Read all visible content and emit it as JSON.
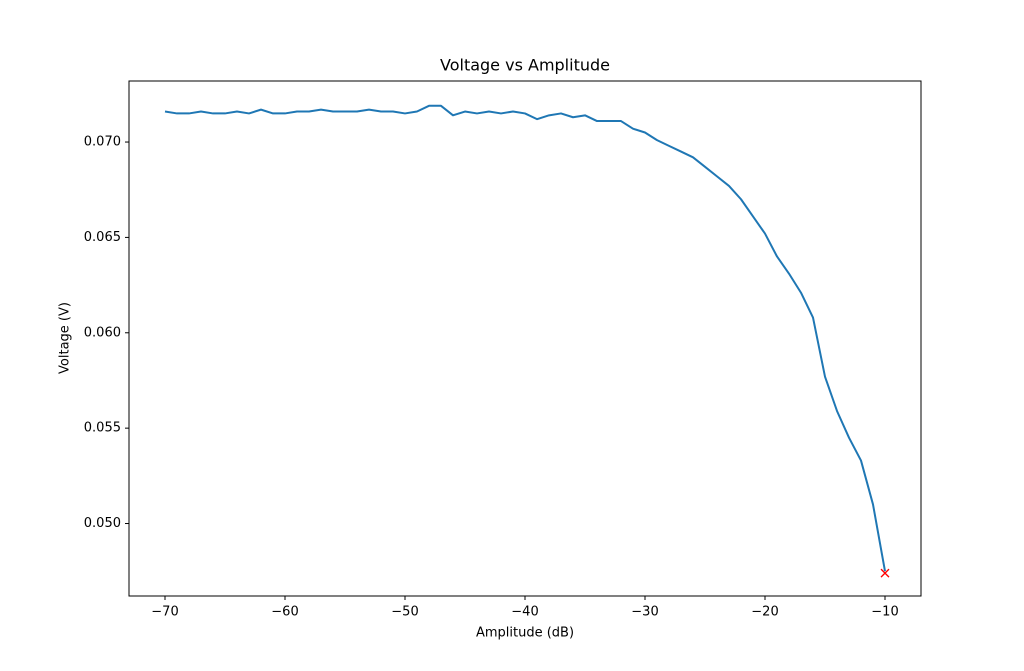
{
  "chart_data": {
    "type": "line",
    "title": "Voltage vs Amplitude",
    "x_label": "Amplitude (dB)",
    "y_label": "Voltage (V)",
    "x": [
      -70,
      -69,
      -68,
      -67,
      -66,
      -65,
      -64,
      -63,
      -62,
      -61,
      -60,
      -59,
      -58,
      -57,
      -56,
      -55,
      -54,
      -53,
      -52,
      -51,
      -50,
      -49,
      -48,
      -47,
      -46,
      -45,
      -44,
      -43,
      -42,
      -41,
      -40,
      -39,
      -38,
      -37,
      -36,
      -35,
      -34,
      -33,
      -32,
      -31,
      -30,
      -29,
      -28,
      -27,
      -26,
      -25,
      -24,
      -23,
      -22,
      -21,
      -20,
      -19,
      -18,
      -17,
      -16,
      -15,
      -14,
      -13,
      -12,
      -11,
      -10
    ],
    "series": [
      {
        "color": "#1f77b4",
        "values": [
          0.0716,
          0.0715,
          0.0715,
          0.0716,
          0.0715,
          0.0715,
          0.0716,
          0.0715,
          0.0717,
          0.0715,
          0.0715,
          0.0716,
          0.0716,
          0.0717,
          0.0716,
          0.0716,
          0.0716,
          0.0717,
          0.0716,
          0.0716,
          0.0715,
          0.0716,
          0.0719,
          0.0719,
          0.0714,
          0.0716,
          0.0715,
          0.0716,
          0.0715,
          0.0716,
          0.0715,
          0.0712,
          0.0714,
          0.0715,
          0.0713,
          0.0714,
          0.0711,
          0.0711,
          0.0711,
          0.0707,
          0.0705,
          0.0701,
          0.0698,
          0.0695,
          0.0692,
          0.0687,
          0.0682,
          0.0677,
          0.067,
          0.0661,
          0.0652,
          0.064,
          0.0631,
          0.0621,
          0.0608,
          0.0577,
          0.0559,
          0.0545,
          0.0533,
          0.051,
          0.0475
        ]
      }
    ],
    "marker": {
      "x": -10,
      "y": 0.0474,
      "color": "#ff0000"
    },
    "xlim": [
      -73,
      -7
    ],
    "ylim": [
      0.0462,
      0.0732
    ],
    "xticks": [
      {
        "value": -70,
        "label": "−70"
      },
      {
        "value": -60,
        "label": "−60"
      },
      {
        "value": -50,
        "label": "−50"
      },
      {
        "value": -40,
        "label": "−40"
      },
      {
        "value": -30,
        "label": "−30"
      },
      {
        "value": -20,
        "label": "−20"
      },
      {
        "value": -10,
        "label": "−10"
      }
    ],
    "yticks": [
      {
        "value": 0.05,
        "label": "0.050"
      },
      {
        "value": 0.055,
        "label": "0.055"
      },
      {
        "value": 0.06,
        "label": "0.060"
      },
      {
        "value": 0.065,
        "label": "0.065"
      },
      {
        "value": 0.07,
        "label": "0.070"
      }
    ]
  }
}
